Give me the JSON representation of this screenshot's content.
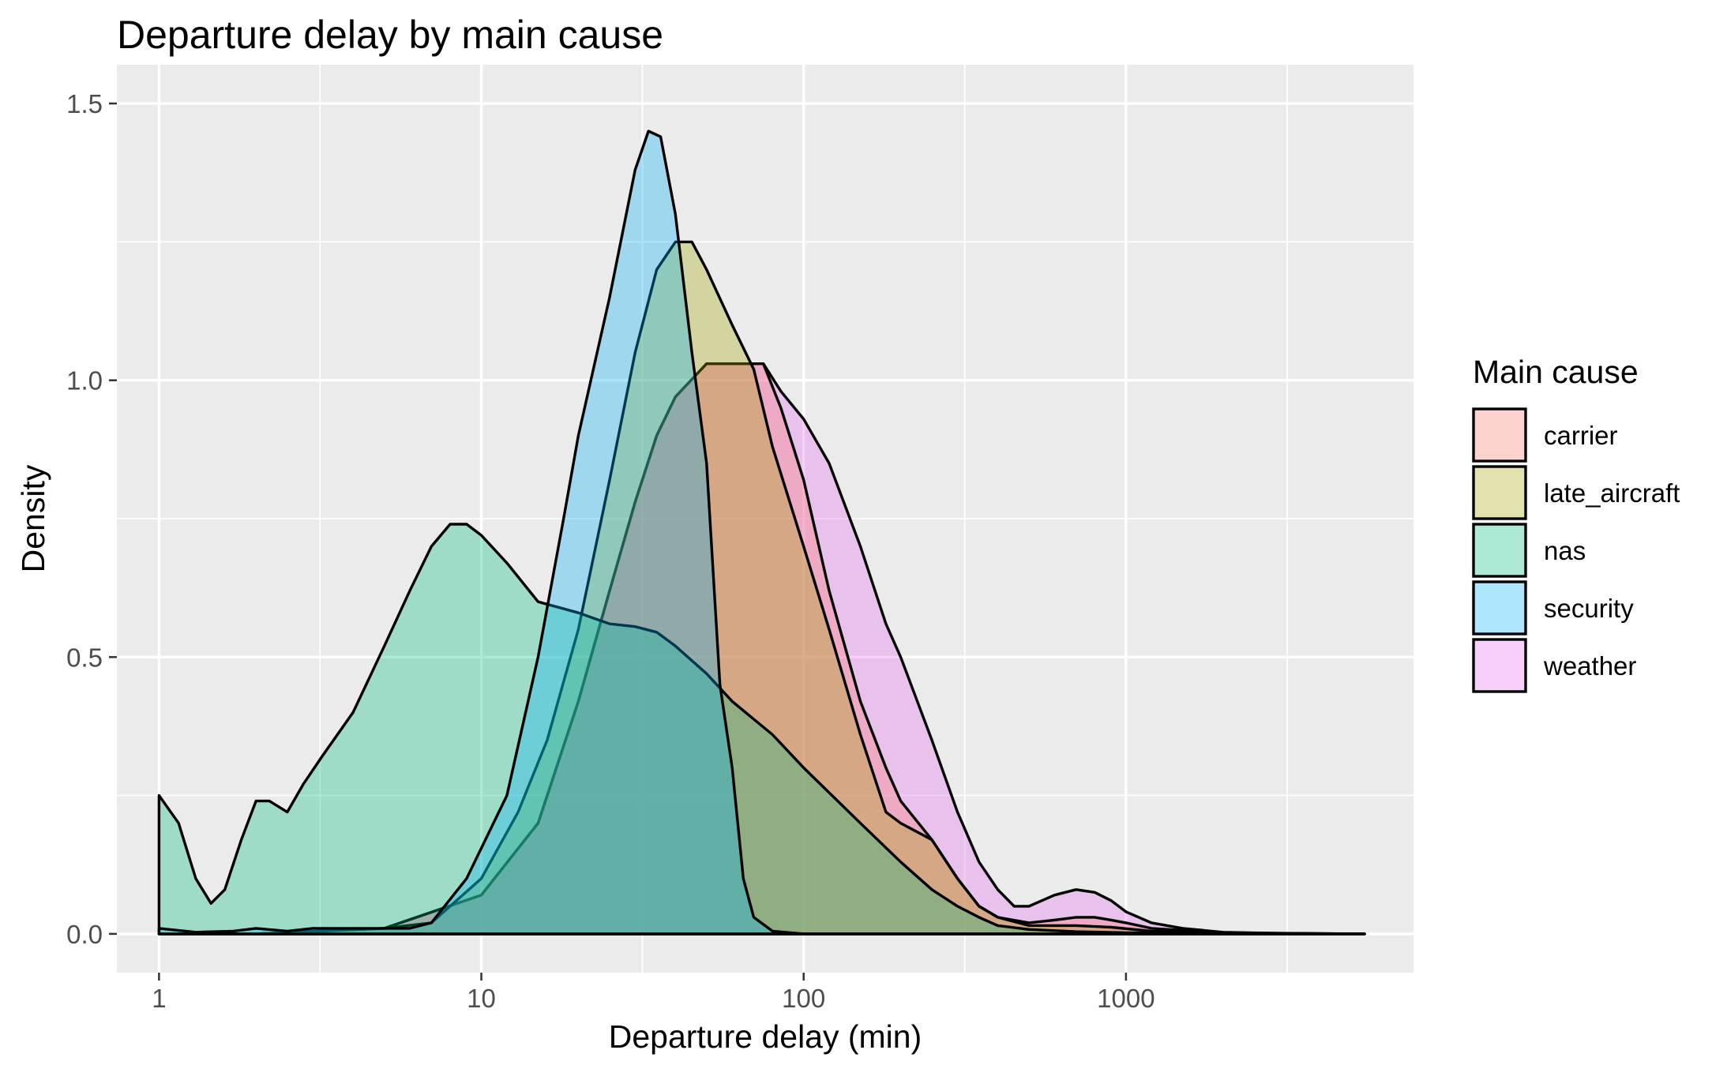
{
  "chart_data": {
    "type": "area",
    "title": "Departure delay by main cause",
    "xlabel": "Departure delay (min)",
    "ylabel": "Density",
    "x_scale": "log10",
    "xlim": [
      0.74,
      7800
    ],
    "ylim": [
      -0.07,
      1.57
    ],
    "x_ticks": [
      {
        "value": 1,
        "label": "1"
      },
      {
        "value": 10,
        "label": "10"
      },
      {
        "value": 100,
        "label": "100"
      },
      {
        "value": 1000,
        "label": "1000"
      }
    ],
    "x_minor_ticks": [
      3.16,
      31.6,
      316,
      3162
    ],
    "y_ticks": [
      {
        "value": 0.0,
        "label": "0.0"
      },
      {
        "value": 0.5,
        "label": "0.5"
      },
      {
        "value": 1.0,
        "label": "1.0"
      },
      {
        "value": 1.5,
        "label": "1.5"
      }
    ],
    "y_minor_ticks": [
      0.25,
      0.75,
      1.25
    ],
    "grid": true,
    "legend": {
      "title": "Main cause",
      "position": "right"
    },
    "series": [
      {
        "name": "weather",
        "color": "#E76BF3",
        "points": [
          [
            1,
            0
          ],
          [
            2,
            0
          ],
          [
            5,
            0.01
          ],
          [
            10,
            0.07
          ],
          [
            15,
            0.2
          ],
          [
            20,
            0.42
          ],
          [
            25,
            0.62
          ],
          [
            30,
            0.78
          ],
          [
            35,
            0.9
          ],
          [
            40,
            0.97
          ],
          [
            50,
            1.03
          ],
          [
            60,
            1.03
          ],
          [
            75,
            1.03
          ],
          [
            85,
            0.98
          ],
          [
            100,
            0.93
          ],
          [
            120,
            0.85
          ],
          [
            150,
            0.7
          ],
          [
            180,
            0.56
          ],
          [
            200,
            0.5
          ],
          [
            250,
            0.35
          ],
          [
            300,
            0.22
          ],
          [
            350,
            0.13
          ],
          [
            400,
            0.08
          ],
          [
            450,
            0.05
          ],
          [
            500,
            0.05
          ],
          [
            600,
            0.07
          ],
          [
            700,
            0.08
          ],
          [
            800,
            0.075
          ],
          [
            900,
            0.06
          ],
          [
            1000,
            0.04
          ],
          [
            1200,
            0.02
          ],
          [
            1500,
            0.01
          ],
          [
            2000,
            0.003
          ],
          [
            3000,
            0.001
          ],
          [
            5500,
            0
          ]
        ]
      },
      {
        "name": "carrier",
        "color": "#F8766D",
        "points": [
          [
            1,
            0
          ],
          [
            2,
            0
          ],
          [
            5,
            0.01
          ],
          [
            10,
            0.07
          ],
          [
            15,
            0.2
          ],
          [
            20,
            0.42
          ],
          [
            25,
            0.62
          ],
          [
            30,
            0.78
          ],
          [
            35,
            0.9
          ],
          [
            40,
            0.97
          ],
          [
            50,
            1.03
          ],
          [
            60,
            1.03
          ],
          [
            75,
            1.03
          ],
          [
            85,
            0.95
          ],
          [
            100,
            0.82
          ],
          [
            120,
            0.62
          ],
          [
            150,
            0.42
          ],
          [
            180,
            0.3
          ],
          [
            200,
            0.24
          ],
          [
            250,
            0.17
          ],
          [
            300,
            0.1
          ],
          [
            350,
            0.05
          ],
          [
            400,
            0.03
          ],
          [
            500,
            0.02
          ],
          [
            600,
            0.025
          ],
          [
            700,
            0.03
          ],
          [
            800,
            0.03
          ],
          [
            900,
            0.025
          ],
          [
            1000,
            0.02
          ],
          [
            1200,
            0.01
          ],
          [
            2000,
            0.002
          ],
          [
            5500,
            0
          ]
        ]
      },
      {
        "name": "late_aircraft",
        "color": "#A3A500",
        "points": [
          [
            1,
            0
          ],
          [
            2,
            0
          ],
          [
            5,
            0.01
          ],
          [
            7,
            0.02
          ],
          [
            10,
            0.1
          ],
          [
            13,
            0.22
          ],
          [
            16,
            0.35
          ],
          [
            20,
            0.55
          ],
          [
            25,
            0.82
          ],
          [
            30,
            1.05
          ],
          [
            35,
            1.2
          ],
          [
            40,
            1.25
          ],
          [
            45,
            1.25
          ],
          [
            50,
            1.2
          ],
          [
            60,
            1.1
          ],
          [
            70,
            1.02
          ],
          [
            80,
            0.88
          ],
          [
            100,
            0.7
          ],
          [
            120,
            0.55
          ],
          [
            150,
            0.36
          ],
          [
            180,
            0.22
          ],
          [
            200,
            0.2
          ],
          [
            250,
            0.17
          ],
          [
            300,
            0.1
          ],
          [
            350,
            0.05
          ],
          [
            400,
            0.03
          ],
          [
            500,
            0.015
          ],
          [
            700,
            0.015
          ],
          [
            900,
            0.012
          ],
          [
            1200,
            0.005
          ],
          [
            2000,
            0.001
          ],
          [
            5500,
            0
          ]
        ]
      },
      {
        "name": "nas",
        "color": "#00BF7D",
        "points": [
          [
            1,
            0.25
          ],
          [
            1.15,
            0.2
          ],
          [
            1.3,
            0.1
          ],
          [
            1.45,
            0.055
          ],
          [
            1.6,
            0.08
          ],
          [
            1.8,
            0.17
          ],
          [
            2.0,
            0.24
          ],
          [
            2.2,
            0.24
          ],
          [
            2.5,
            0.22
          ],
          [
            2.8,
            0.27
          ],
          [
            3.2,
            0.32
          ],
          [
            4,
            0.4
          ],
          [
            5,
            0.52
          ],
          [
            6,
            0.62
          ],
          [
            7,
            0.7
          ],
          [
            8,
            0.74
          ],
          [
            9,
            0.74
          ],
          [
            10,
            0.72
          ],
          [
            12,
            0.67
          ],
          [
            15,
            0.6
          ],
          [
            20,
            0.58
          ],
          [
            25,
            0.56
          ],
          [
            30,
            0.555
          ],
          [
            35,
            0.545
          ],
          [
            40,
            0.52
          ],
          [
            50,
            0.47
          ],
          [
            60,
            0.42
          ],
          [
            80,
            0.36
          ],
          [
            100,
            0.3
          ],
          [
            150,
            0.2
          ],
          [
            200,
            0.13
          ],
          [
            250,
            0.08
          ],
          [
            300,
            0.05
          ],
          [
            350,
            0.03
          ],
          [
            400,
            0.015
          ],
          [
            500,
            0.008
          ],
          [
            700,
            0.004
          ],
          [
            1000,
            0.002
          ],
          [
            2000,
            0.001
          ],
          [
            5500,
            0
          ]
        ]
      },
      {
        "name": "security",
        "color": "#00B0F6",
        "points": [
          [
            1,
            0.01
          ],
          [
            1.3,
            0.003
          ],
          [
            1.7,
            0.005
          ],
          [
            2,
            0.01
          ],
          [
            2.5,
            0.005
          ],
          [
            3,
            0.01
          ],
          [
            5,
            0.01
          ],
          [
            6,
            0.01
          ],
          [
            7,
            0.02
          ],
          [
            9,
            0.1
          ],
          [
            12,
            0.25
          ],
          [
            15,
            0.5
          ],
          [
            18,
            0.75
          ],
          [
            20,
            0.9
          ],
          [
            25,
            1.15
          ],
          [
            30,
            1.38
          ],
          [
            33,
            1.45
          ],
          [
            36,
            1.44
          ],
          [
            40,
            1.3
          ],
          [
            45,
            1.05
          ],
          [
            50,
            0.85
          ],
          [
            55,
            0.45
          ],
          [
            60,
            0.3
          ],
          [
            65,
            0.1
          ],
          [
            70,
            0.03
          ],
          [
            80,
            0.005
          ],
          [
            100,
            0
          ],
          [
            500,
            0
          ],
          [
            1000,
            0
          ],
          [
            5500,
            0
          ]
        ]
      }
    ]
  }
}
